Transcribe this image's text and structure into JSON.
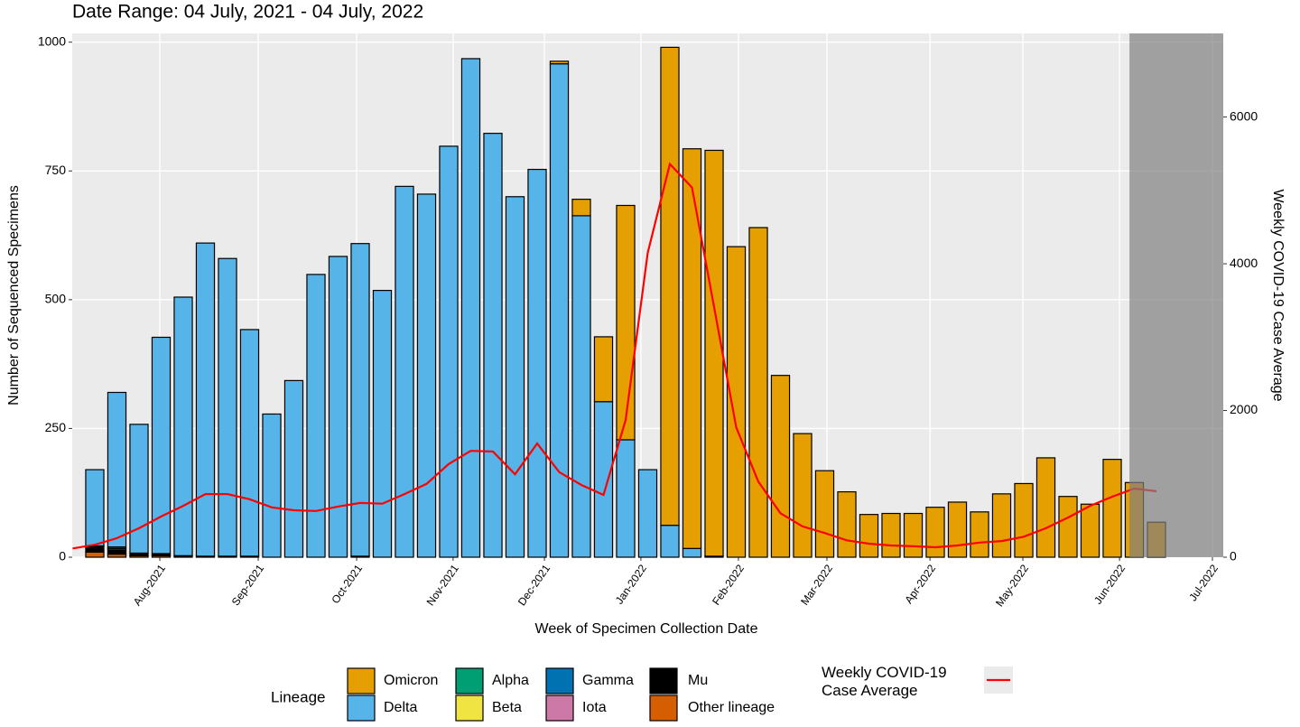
{
  "chart_data": {
    "type": "bar",
    "stacked": true,
    "title": "Date Range: 04 July, 2021 - 04 July, 2022",
    "xlabel": "Week of Specimen Collection Date",
    "ylabel": "Number of Sequenced Specimens",
    "y2label": "Weekly COVID-19 Case Average",
    "legend_title": "Lineage",
    "grid": true,
    "x": [
      0,
      1,
      2,
      3,
      4,
      5,
      6,
      7,
      8,
      9,
      10,
      11,
      12,
      13,
      14,
      15,
      16,
      17,
      18,
      19,
      20,
      21,
      22,
      23,
      24,
      25,
      26,
      27,
      28,
      29,
      30,
      31,
      32,
      33,
      34,
      35,
      36,
      37,
      38,
      39,
      40,
      41,
      42,
      43,
      44,
      45,
      46,
      47,
      48
    ],
    "xlim": [
      -1.02,
      51.02
    ],
    "xticks": [
      {
        "value": 2.94,
        "label": "Aug-2021"
      },
      {
        "value": 7.39,
        "label": "Sep-2021"
      },
      {
        "value": 11.84,
        "label": "Oct-2021"
      },
      {
        "value": 16.2,
        "label": "Nov-2021"
      },
      {
        "value": 20.33,
        "label": "Dec-2021"
      },
      {
        "value": 24.69,
        "label": "Jan-2022"
      },
      {
        "value": 29.1,
        "label": "Feb-2022"
      },
      {
        "value": 33.1,
        "label": "Mar-2022"
      },
      {
        "value": 37.76,
        "label": "Apr-2022"
      },
      {
        "value": 41.96,
        "label": "May-2022"
      },
      {
        "value": 46.33,
        "label": "Jun-2022"
      },
      {
        "value": 50.53,
        "label": "Jul-2022"
      }
    ],
    "ylim": [
      0,
      1017
    ],
    "yticks": [
      0,
      250,
      500,
      750,
      1000
    ],
    "y2lim": [
      0,
      7140
    ],
    "y2ticks": [
      0,
      2000,
      4000,
      6000
    ],
    "shaded_xrange": [
      46.78,
      51.02
    ],
    "series": [
      {
        "name": "Omicron",
        "color": "#E69F00",
        "values": [
          0,
          0,
          0,
          0,
          0,
          0,
          0,
          0,
          0,
          0,
          0,
          0,
          0,
          0,
          0,
          0,
          0,
          0,
          0,
          0,
          0,
          5,
          32,
          126,
          455,
          0,
          928,
          776,
          788,
          603,
          640,
          353,
          240,
          168,
          127,
          83,
          85,
          85,
          97,
          107,
          88,
          123,
          143,
          193,
          118,
          103,
          190,
          145,
          68
        ]
      },
      {
        "name": "Delta",
        "color": "#56B4E9",
        "values": [
          148,
          300,
          250,
          420,
          502,
          608,
          578,
          440,
          278,
          343,
          549,
          584,
          607,
          518,
          720,
          705,
          798,
          968,
          823,
          700,
          753,
          958,
          663,
          302,
          228,
          170,
          62,
          17,
          0,
          0,
          0,
          0,
          0,
          0,
          0,
          0,
          0,
          0,
          0,
          0,
          0,
          0,
          0,
          0,
          0,
          0,
          0,
          0,
          0
        ]
      },
      {
        "name": "Alpha",
        "color": "#009E73",
        "values": [
          0,
          3,
          0,
          0,
          0,
          0,
          0,
          0,
          0,
          0,
          0,
          0,
          0,
          0,
          0,
          0,
          0,
          0,
          0,
          0,
          0,
          0,
          0,
          0,
          0,
          0,
          0,
          0,
          0,
          0,
          0,
          0,
          0,
          0,
          0,
          0,
          0,
          0,
          0,
          0,
          0,
          0,
          0,
          0,
          0,
          0,
          0,
          0,
          0
        ]
      },
      {
        "name": "Beta",
        "color": "#F0E442",
        "values": [
          0,
          0,
          0,
          0,
          0,
          0,
          0,
          0,
          0,
          0,
          0,
          0,
          0,
          0,
          0,
          0,
          0,
          0,
          0,
          0,
          0,
          0,
          0,
          0,
          0,
          0,
          0,
          0,
          0,
          0,
          0,
          0,
          0,
          0,
          0,
          0,
          0,
          0,
          0,
          0,
          0,
          0,
          0,
          0,
          0,
          0,
          0,
          0,
          0
        ]
      },
      {
        "name": "Gamma",
        "color": "#0072B2",
        "values": [
          0,
          3,
          0,
          0,
          0,
          0,
          0,
          0,
          0,
          0,
          0,
          0,
          0,
          0,
          0,
          0,
          0,
          0,
          0,
          0,
          0,
          0,
          0,
          0,
          0,
          0,
          0,
          0,
          0,
          0,
          0,
          0,
          0,
          0,
          0,
          0,
          0,
          0,
          0,
          0,
          0,
          0,
          0,
          0,
          0,
          0,
          0,
          0,
          0
        ]
      },
      {
        "name": "Iota",
        "color": "#CC79A7",
        "values": [
          0,
          0,
          0,
          0,
          0,
          0,
          0,
          0,
          0,
          0,
          0,
          0,
          0,
          0,
          0,
          0,
          0,
          0,
          0,
          0,
          0,
          0,
          0,
          0,
          0,
          0,
          0,
          0,
          0,
          0,
          0,
          0,
          0,
          0,
          0,
          0,
          0,
          0,
          0,
          0,
          0,
          0,
          0,
          0,
          0,
          0,
          0,
          0,
          0
        ]
      },
      {
        "name": "Mu",
        "color": "#000000",
        "values": [
          12,
          8,
          5,
          4,
          3,
          2,
          2,
          2,
          0,
          0,
          0,
          0,
          2,
          0,
          0,
          0,
          0,
          0,
          0,
          0,
          0,
          0,
          0,
          0,
          0,
          0,
          0,
          0,
          2,
          0,
          0,
          0,
          0,
          0,
          0,
          0,
          0,
          0,
          0,
          0,
          0,
          0,
          0,
          0,
          0,
          0,
          0,
          0,
          0
        ]
      },
      {
        "name": "Other lineage",
        "color": "#D55E00",
        "values": [
          10,
          6,
          3,
          3,
          0,
          0,
          0,
          0,
          0,
          0,
          0,
          0,
          0,
          0,
          0,
          0,
          0,
          0,
          0,
          0,
          0,
          0,
          0,
          0,
          0,
          0,
          0,
          0,
          0,
          0,
          0,
          0,
          0,
          0,
          0,
          0,
          0,
          0,
          0,
          0,
          0,
          0,
          0,
          0,
          0,
          0,
          0,
          0,
          0
        ]
      }
    ],
    "line": {
      "name": "Weekly COVID-19 Case Average",
      "color": "#FF0000",
      "axis": "y2",
      "x": [
        -1,
        0,
        1,
        2,
        3,
        4,
        5,
        6,
        7,
        8,
        9,
        10,
        11,
        12,
        13,
        14,
        15,
        16,
        17,
        18,
        19,
        20,
        21,
        22,
        23,
        24,
        25,
        26,
        27,
        28,
        29,
        30,
        31,
        32,
        33,
        34,
        35,
        36,
        37,
        38,
        39,
        40,
        41,
        42,
        43,
        44,
        45,
        46,
        47,
        48
      ],
      "values": [
        120,
        170,
        260,
        395,
        555,
        700,
        860,
        860,
        790,
        680,
        640,
        630,
        690,
        740,
        730,
        860,
        1000,
        1270,
        1450,
        1440,
        1130,
        1550,
        1160,
        985,
        850,
        1870,
        4150,
        5360,
        5040,
        3410,
        1770,
        1030,
        600,
        420,
        330,
        230,
        185,
        160,
        150,
        135,
        160,
        200,
        220,
        280,
        395,
        540,
        700,
        825,
        935,
        900
      ]
    }
  }
}
